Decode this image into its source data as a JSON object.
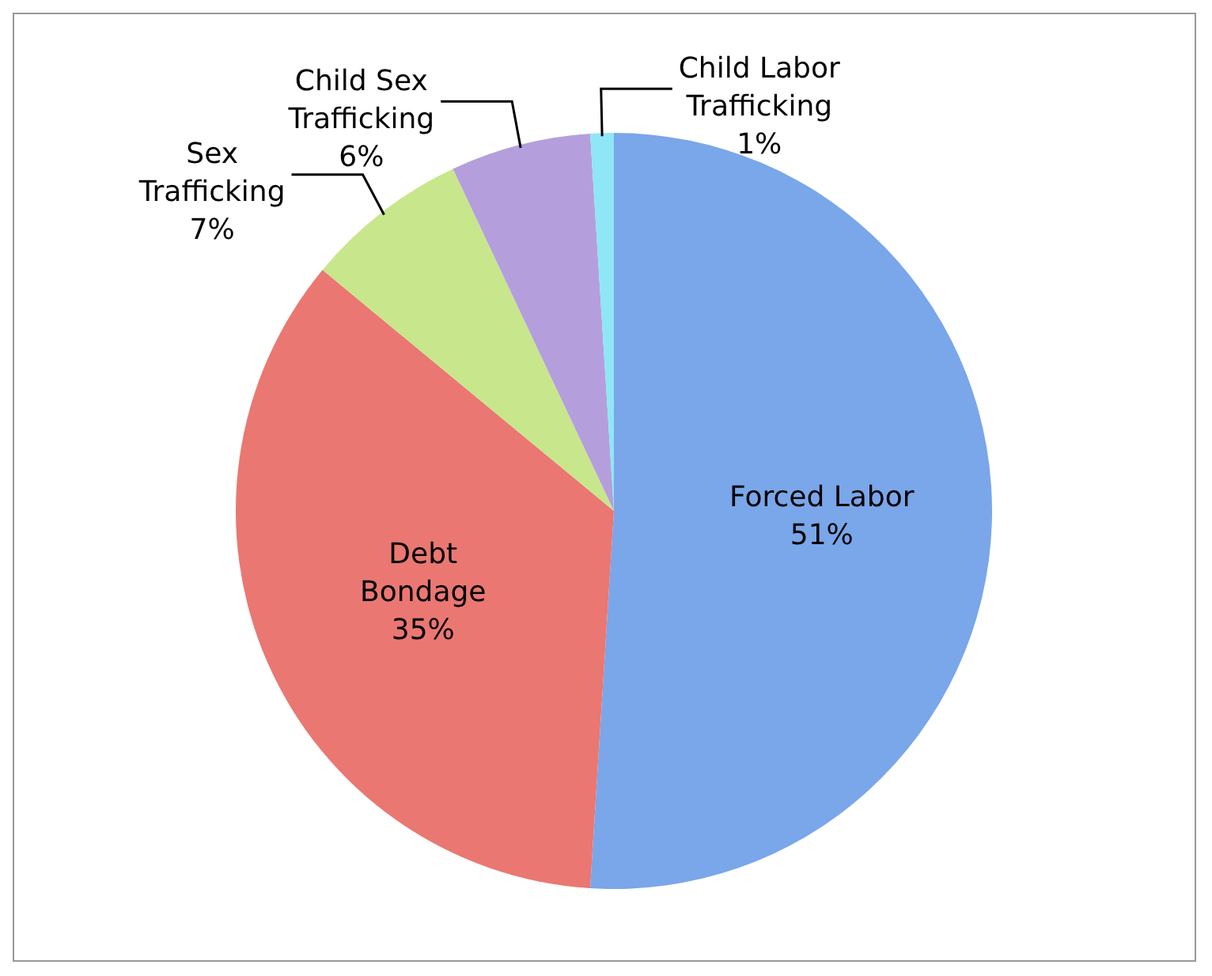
{
  "chart_data": {
    "type": "pie",
    "categories": [
      "Forced Labor",
      "Debt Bondage",
      "Sex Trafficking",
      "Child Sex Trafficking",
      "Child Labor Trafficking"
    ],
    "values": [
      51,
      35,
      7,
      6,
      1
    ],
    "colors": [
      "#7aa6ea",
      "#ea7772",
      "#c8e68c",
      "#b49fdc",
      "#8fe6f6"
    ],
    "value_labels": [
      "51%",
      "35%",
      "7%",
      "6%",
      "1%"
    ],
    "legend": false
  }
}
